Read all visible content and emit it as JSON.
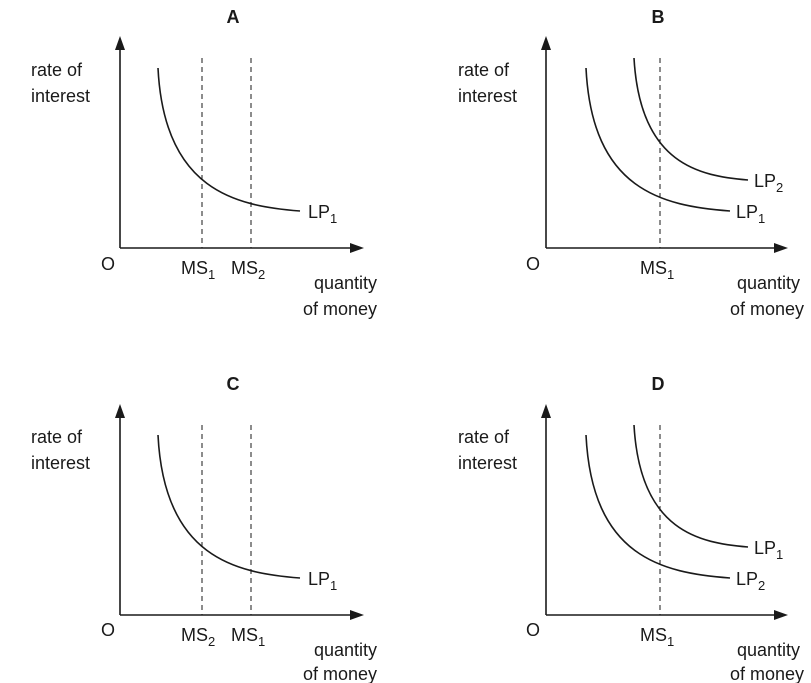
{
  "panels": {
    "A": {
      "label": "A",
      "y_axis": [
        "rate of",
        "interest"
      ],
      "origin": "O",
      "x_axis": [
        "quantity",
        "of money"
      ],
      "lines": {
        "ms_left": {
          "main": "MS",
          "sub": "1"
        },
        "ms_right": {
          "main": "MS",
          "sub": "2"
        }
      },
      "curves": {
        "lp": {
          "main": "LP",
          "sub": "1"
        }
      }
    },
    "B": {
      "label": "B",
      "y_axis": [
        "rate of",
        "interest"
      ],
      "origin": "O",
      "x_axis": [
        "quantity",
        "of money"
      ],
      "lines": {
        "ms": {
          "main": "MS",
          "sub": "1"
        }
      },
      "curves": {
        "upper": {
          "main": "LP",
          "sub": "2"
        },
        "lower": {
          "main": "LP",
          "sub": "1"
        }
      }
    },
    "C": {
      "label": "C",
      "y_axis": [
        "rate of",
        "interest"
      ],
      "origin": "O",
      "x_axis": [
        "quantity",
        "of money"
      ],
      "lines": {
        "ms_left": {
          "main": "MS",
          "sub": "2"
        },
        "ms_right": {
          "main": "MS",
          "sub": "1"
        }
      },
      "curves": {
        "lp": {
          "main": "LP",
          "sub": "1"
        }
      }
    },
    "D": {
      "label": "D",
      "y_axis": [
        "rate of",
        "interest"
      ],
      "origin": "O",
      "x_axis": [
        "quantity",
        "of money"
      ],
      "lines": {
        "ms": {
          "main": "MS",
          "sub": "1"
        }
      },
      "curves": {
        "upper": {
          "main": "LP",
          "sub": "1"
        },
        "lower": {
          "main": "LP",
          "sub": "2"
        }
      }
    }
  }
}
